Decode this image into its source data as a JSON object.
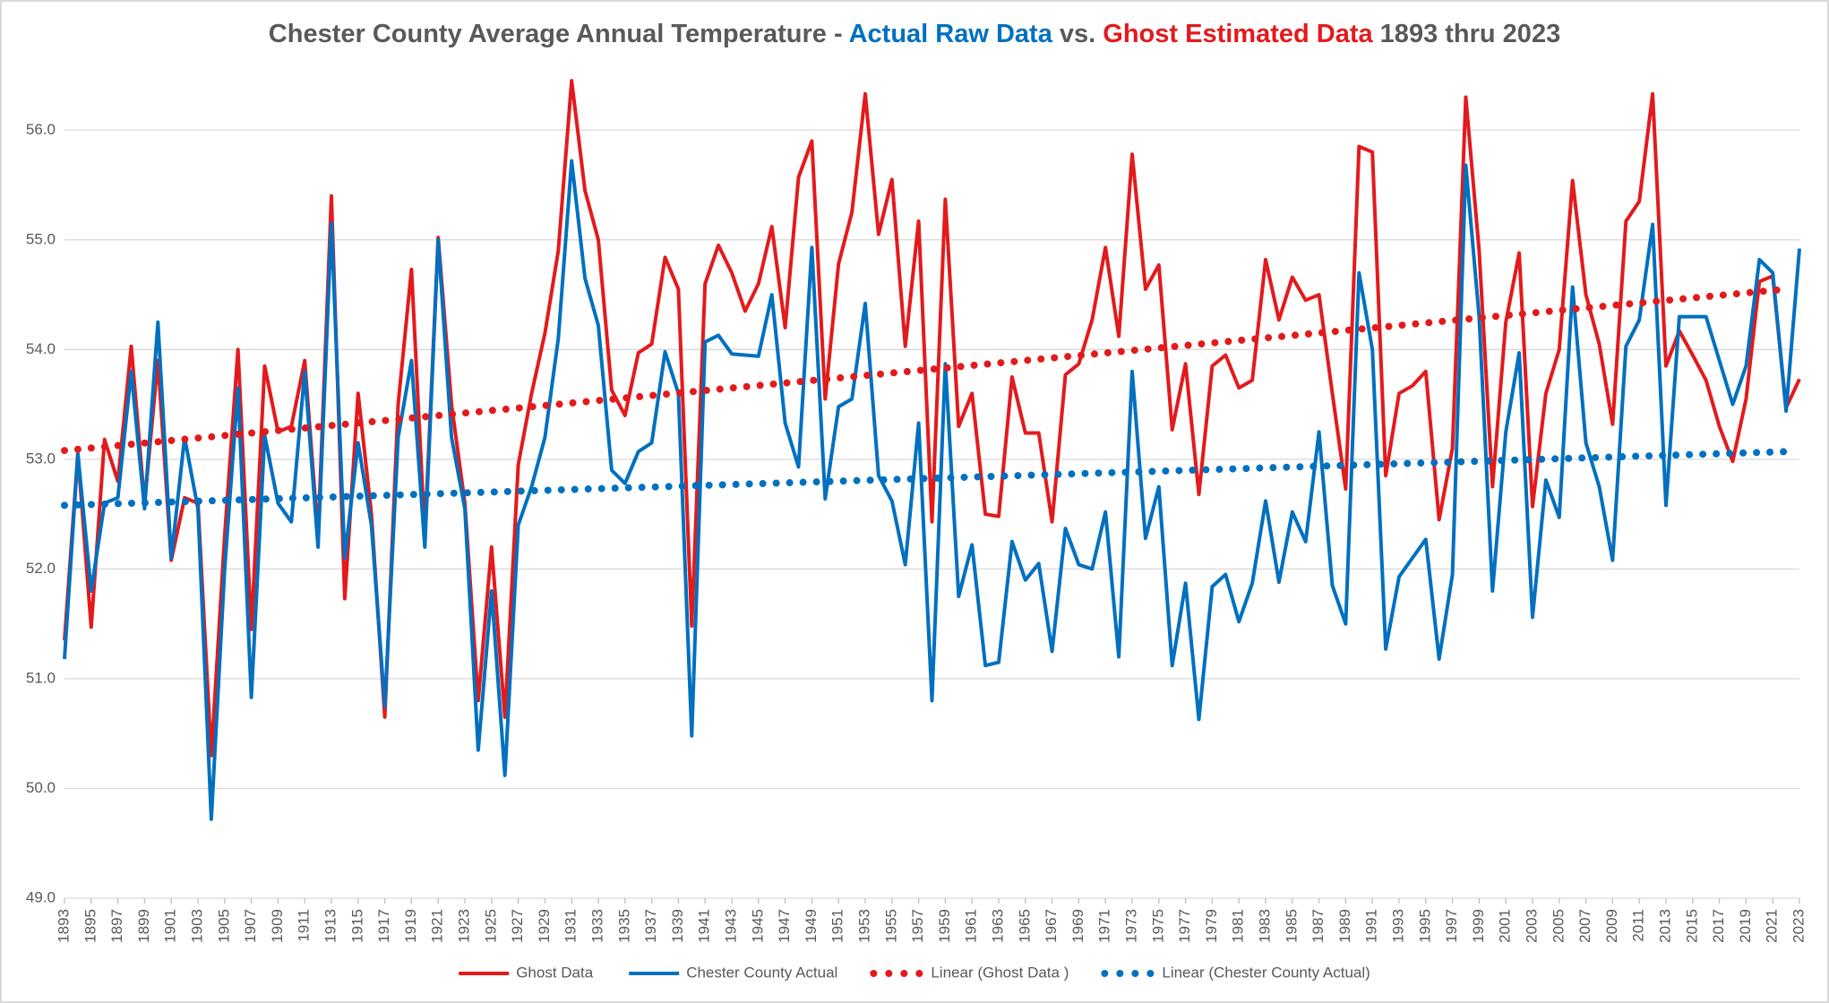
{
  "chart_data": {
    "type": "line",
    "title": [
      {
        "text": "Chester County Average Annual Temperature - ",
        "color": "#595959"
      },
      {
        "text": "Actual Raw Data",
        "color": "#0070c0"
      },
      {
        "text": " vs. ",
        "color": "#595959"
      },
      {
        "text": "Ghost Estimated Data",
        "color": "#e31a1c"
      },
      {
        "text": " 1893 thru 2023",
        "color": "#595959"
      }
    ],
    "x": [
      1893,
      1894,
      1895,
      1896,
      1897,
      1898,
      1899,
      1900,
      1901,
      1902,
      1903,
      1904,
      1905,
      1906,
      1907,
      1908,
      1909,
      1910,
      1911,
      1912,
      1913,
      1914,
      1915,
      1916,
      1917,
      1918,
      1919,
      1920,
      1921,
      1922,
      1923,
      1924,
      1925,
      1926,
      1927,
      1928,
      1929,
      1930,
      1931,
      1932,
      1933,
      1934,
      1935,
      1936,
      1937,
      1938,
      1939,
      1940,
      1941,
      1942,
      1943,
      1944,
      1945,
      1946,
      1947,
      1948,
      1949,
      1950,
      1951,
      1952,
      1953,
      1954,
      1955,
      1956,
      1957,
      1958,
      1959,
      1960,
      1961,
      1962,
      1963,
      1964,
      1965,
      1966,
      1967,
      1968,
      1969,
      1970,
      1971,
      1972,
      1973,
      1974,
      1975,
      1976,
      1977,
      1978,
      1979,
      1980,
      1981,
      1982,
      1983,
      1984,
      1985,
      1986,
      1987,
      1988,
      1989,
      1990,
      1991,
      1992,
      1993,
      1994,
      1995,
      1996,
      1997,
      1998,
      1999,
      2000,
      2001,
      2002,
      2003,
      2004,
      2005,
      2006,
      2007,
      2008,
      2009,
      2010,
      2011,
      2012,
      2013,
      2014,
      2015,
      2016,
      2017,
      2018,
      2019,
      2020,
      2021,
      2022,
      2023
    ],
    "series": [
      {
        "name": "Ghost Data",
        "color": "#e31a1c",
        "values": [
          51.35,
          53.05,
          51.47,
          53.18,
          52.8,
          54.03,
          52.6,
          53.9,
          52.08,
          52.65,
          52.6,
          50.3,
          52.3,
          54.0,
          51.45,
          53.85,
          53.25,
          53.3,
          53.9,
          52.3,
          55.4,
          51.73,
          53.6,
          52.5,
          50.65,
          53.5,
          54.73,
          52.3,
          55.02,
          53.5,
          52.6,
          50.8,
          52.2,
          50.65,
          52.95,
          53.6,
          54.15,
          54.9,
          56.45,
          55.45,
          55.0,
          53.63,
          53.4,
          53.97,
          54.05,
          54.84,
          54.55,
          51.48,
          54.6,
          54.95,
          54.7,
          54.35,
          54.6,
          55.12,
          54.2,
          55.57,
          55.9,
          53.55,
          54.78,
          55.25,
          56.33,
          55.05,
          55.55,
          54.03,
          55.17,
          52.43,
          55.37,
          53.3,
          53.6,
          52.5,
          52.48,
          53.75,
          53.24,
          53.24,
          52.43,
          53.77,
          53.87,
          54.27,
          54.93,
          54.12,
          55.78,
          54.55,
          54.77,
          53.27,
          53.87,
          52.68,
          53.85,
          53.95,
          53.65,
          53.72,
          54.82,
          54.27,
          54.66,
          54.45,
          54.5,
          53.6,
          52.73,
          55.85,
          55.8,
          52.85,
          53.6,
          53.67,
          53.8,
          52.45,
          53.1,
          56.3,
          54.9,
          52.75,
          54.25,
          54.88,
          52.57,
          53.6,
          54.0,
          55.54,
          54.5,
          54.05,
          53.32,
          55.17,
          55.35,
          56.33,
          53.85,
          54.17,
          53.95,
          53.72,
          53.3,
          52.98,
          53.55,
          54.62,
          54.67,
          53.47,
          53.73
        ]
      },
      {
        "name": "Chester County Actual",
        "color": "#0070c0",
        "values": [
          51.18,
          53.05,
          51.8,
          52.6,
          52.65,
          53.8,
          52.55,
          54.25,
          52.1,
          53.2,
          52.55,
          49.72,
          52.0,
          53.65,
          50.83,
          53.22,
          52.6,
          52.43,
          53.8,
          52.2,
          55.15,
          52.1,
          53.15,
          52.4,
          50.75,
          53.2,
          53.9,
          52.2,
          55.0,
          53.2,
          52.55,
          50.35,
          51.8,
          50.12,
          52.4,
          52.75,
          53.2,
          54.1,
          55.72,
          54.65,
          54.22,
          52.9,
          52.78,
          53.07,
          53.15,
          53.98,
          53.6,
          50.48,
          54.07,
          54.13,
          53.96,
          53.95,
          53.94,
          54.5,
          53.33,
          52.93,
          54.93,
          52.64,
          53.48,
          53.55,
          54.42,
          52.85,
          52.62,
          52.04,
          53.33,
          50.8,
          53.87,
          51.75,
          52.22,
          51.12,
          51.15,
          52.25,
          51.9,
          52.05,
          51.25,
          52.37,
          52.04,
          52.0,
          52.52,
          51.2,
          53.8,
          52.28,
          52.75,
          51.12,
          51.87,
          50.63,
          51.84,
          51.95,
          51.52,
          51.87,
          52.62,
          51.88,
          52.52,
          52.25,
          53.25,
          51.85,
          51.5,
          54.7,
          54.0,
          51.27,
          51.93,
          52.1,
          52.27,
          51.18,
          51.95,
          55.68,
          54.3,
          51.8,
          53.25,
          53.97,
          51.56,
          52.81,
          52.47,
          54.57,
          53.15,
          52.75,
          52.08,
          54.03,
          54.27,
          55.14,
          52.58,
          54.3,
          54.3,
          54.3,
          53.9,
          53.5,
          53.85,
          54.82,
          54.7,
          53.44,
          54.92
        ]
      }
    ],
    "trendlines": [
      {
        "name": "Linear (Ghost Data )",
        "color": "#e31a1c",
        "x": [
          1893,
          2022
        ],
        "values": [
          53.08,
          54.55
        ]
      },
      {
        "name": "Linear (Chester County Actual)",
        "color": "#0070c0",
        "x": [
          1893,
          2022
        ],
        "values": [
          52.58,
          53.07
        ]
      }
    ],
    "xlim": [
      1893,
      2023
    ],
    "xticks": [
      1893,
      1895,
      1897,
      1899,
      1901,
      1903,
      1905,
      1907,
      1909,
      1911,
      1913,
      1915,
      1917,
      1919,
      1921,
      1923,
      1925,
      1927,
      1929,
      1931,
      1933,
      1935,
      1937,
      1939,
      1941,
      1943,
      1945,
      1947,
      1949,
      1951,
      1953,
      1955,
      1957,
      1959,
      1961,
      1963,
      1965,
      1967,
      1969,
      1971,
      1973,
      1975,
      1977,
      1979,
      1981,
      1983,
      1985,
      1987,
      1989,
      1991,
      1993,
      1995,
      1997,
      1999,
      2001,
      2003,
      2005,
      2007,
      2009,
      2011,
      2013,
      2015,
      2017,
      2019,
      2021,
      2023
    ],
    "ylim": [
      49,
      56.5
    ],
    "yticks": [
      {
        "value": 49,
        "label": "49.0"
      },
      {
        "value": 50,
        "label": "50.0"
      },
      {
        "value": 51,
        "label": "51.0"
      },
      {
        "value": 52,
        "label": "52.0"
      },
      {
        "value": 53,
        "label": "53.0"
      },
      {
        "value": 54,
        "label": "54.0"
      },
      {
        "value": 55,
        "label": "55.0"
      },
      {
        "value": 56,
        "label": "56.0"
      }
    ],
    "grid": true,
    "legend": "bottom"
  }
}
